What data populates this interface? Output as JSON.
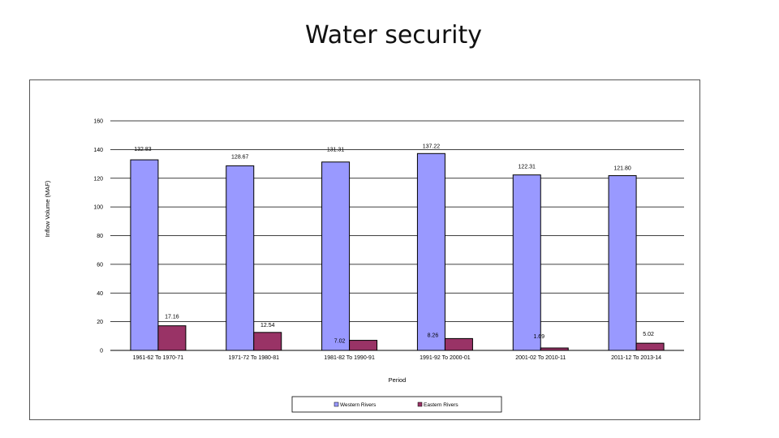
{
  "slide": {
    "title": "Water security"
  },
  "colors": {
    "western": "#9999ff",
    "eastern": "#993366",
    "gridline": "#000000",
    "bar_outline": "#000000"
  },
  "chart_data": {
    "type": "bar",
    "title": "",
    "xlabel": "Period",
    "ylabel": "Inflow Volume (MAF)",
    "ylim": [
      0,
      160
    ],
    "yticks": [
      0,
      20,
      40,
      60,
      80,
      100,
      120,
      140,
      160
    ],
    "grid": true,
    "legend_position": "bottom",
    "categories": [
      "1961-62 To 1970-71",
      "1971-72 To 1980-81",
      "1981-82 To 1990-91",
      "1991-92 To 2000-01",
      "2001-02 To 2010-11",
      "2011-12 To 2013-14"
    ],
    "series": [
      {
        "name": "Western Rivers",
        "values": [
          132.83,
          128.67,
          131.31,
          137.22,
          122.31,
          121.8
        ],
        "labels": [
          "132.83",
          "128.67",
          "131.31",
          "137.22",
          "122.31",
          "121.80"
        ]
      },
      {
        "name": "Eastern Rivers",
        "values": [
          17.16,
          12.54,
          7.02,
          8.26,
          1.69,
          5.02
        ],
        "labels": [
          "17.16",
          "12.54",
          "7.02",
          "8.26",
          "1.69",
          "5.02"
        ]
      }
    ]
  }
}
